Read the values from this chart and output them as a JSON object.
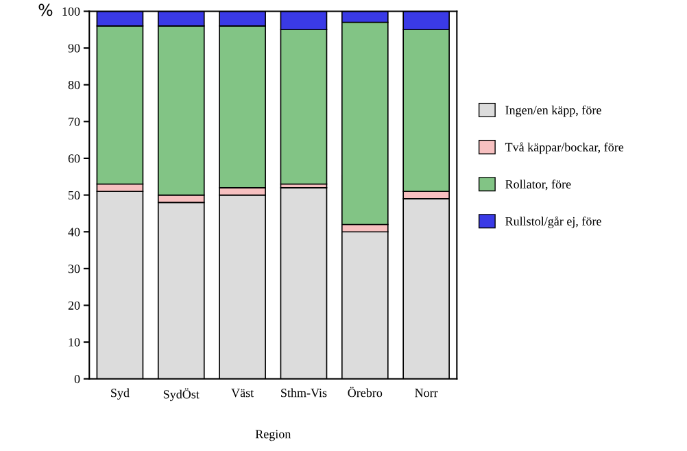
{
  "chart_data": {
    "type": "bar",
    "stacked": true,
    "xlabel": "Region",
    "ylabel": "%",
    "categories": [
      "Syd",
      "SydÖst",
      "Väst",
      "Sthm-Vis",
      "Örebro",
      "Norr"
    ],
    "series": [
      {
        "name": "Ingen/en käpp, före",
        "color": "#dcdcdc",
        "values": [
          51,
          48,
          50,
          52,
          40,
          49
        ]
      },
      {
        "name": "Två käppar/bockar, före",
        "color": "#f7c0c0",
        "values": [
          2,
          2,
          2,
          1,
          2,
          2
        ]
      },
      {
        "name": "Rollator, före",
        "color": "#82c485",
        "values": [
          43,
          46,
          44,
          42,
          55,
          44
        ]
      },
      {
        "name": "Rullstol/går ej, före",
        "color": "#3a3ae6",
        "values": [
          4,
          4,
          4,
          5,
          3,
          5
        ]
      }
    ],
    "ylim": [
      0,
      100
    ],
    "yticks": [
      0,
      10,
      20,
      30,
      40,
      50,
      60,
      70,
      80,
      90,
      100
    ],
    "grid": false,
    "legend": "right"
  }
}
